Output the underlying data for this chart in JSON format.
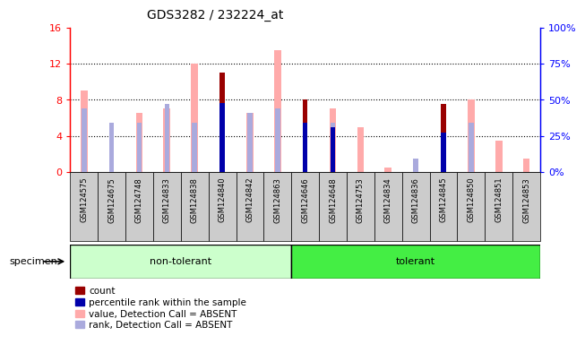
{
  "title": "GDS3282 / 232224_at",
  "samples": [
    "GSM124575",
    "GSM124675",
    "GSM124748",
    "GSM124833",
    "GSM124838",
    "GSM124840",
    "GSM124842",
    "GSM124863",
    "GSM124646",
    "GSM124648",
    "GSM124753",
    "GSM124834",
    "GSM124836",
    "GSM124845",
    "GSM124850",
    "GSM124851",
    "GSM124853"
  ],
  "n_nontolerant": 8,
  "n_tolerant": 9,
  "count": [
    0,
    0,
    0,
    0,
    0,
    11.0,
    0,
    0,
    8.0,
    0,
    0,
    0,
    0,
    7.5,
    0,
    0,
    0
  ],
  "percentile_rank": [
    0,
    0,
    0,
    0,
    0,
    48.0,
    0,
    0,
    34.0,
    31.0,
    0,
    0,
    0,
    27.0,
    0,
    0,
    0
  ],
  "value_absent": [
    9.0,
    0,
    6.5,
    7.0,
    12.0,
    0,
    6.5,
    13.5,
    0,
    7.0,
    5.0,
    0.5,
    0,
    0,
    8.0,
    3.5,
    1.5
  ],
  "rank_absent": [
    44.0,
    34.0,
    34.0,
    47.0,
    34.0,
    0,
    41.0,
    44.0,
    0,
    34.0,
    0,
    0,
    9.0,
    0,
    34.0,
    0,
    0
  ],
  "ylim_left": [
    0,
    16
  ],
  "ylim_right": [
    0,
    100
  ],
  "yticks_left": [
    0,
    4,
    8,
    12,
    16
  ],
  "yticks_right": [
    0,
    25,
    50,
    75,
    100
  ],
  "ytick_labels_left": [
    "0",
    "4",
    "8",
    "12",
    "16"
  ],
  "ytick_labels_right": [
    "0%",
    "25%",
    "50%",
    "75%",
    "100%"
  ],
  "color_count": "#990000",
  "color_rank": "#0000aa",
  "color_value_absent": "#ffaaaa",
  "color_rank_absent": "#aaaadd",
  "group_color_nt": "#ccffcc",
  "group_color_t": "#44ee44",
  "legend_items": [
    {
      "label": "count",
      "color": "#990000"
    },
    {
      "label": "percentile rank within the sample",
      "color": "#0000aa"
    },
    {
      "label": "value, Detection Call = ABSENT",
      "color": "#ffaaaa"
    },
    {
      "label": "rank, Detection Call = ABSENT",
      "color": "#aaaadd"
    }
  ],
  "specimen_label": "specimen",
  "chart_bg": "#d8d8d8",
  "xlabel_bg": "#cccccc"
}
